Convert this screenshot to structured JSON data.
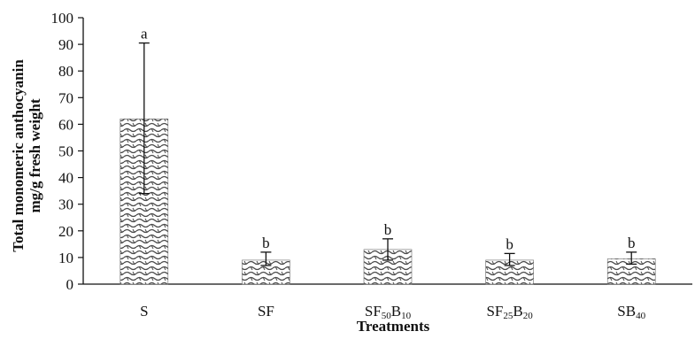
{
  "chart_data": {
    "type": "bar",
    "title": "",
    "xlabel": "Treatments",
    "ylabel": [
      "Total monomeric  anthocyanin",
      "mg/g fresh weight"
    ],
    "ylim": [
      0,
      100
    ],
    "yticks": [
      0,
      10,
      20,
      30,
      40,
      50,
      60,
      70,
      80,
      90,
      100
    ],
    "grid": false,
    "legend": "none",
    "categories": [
      {
        "label": "S",
        "parts": [
          {
            "t": "S",
            "sub": false
          }
        ]
      },
      {
        "label": "SF",
        "parts": [
          {
            "t": "SF",
            "sub": false
          }
        ]
      },
      {
        "label": "SF50B10",
        "parts": [
          {
            "t": "SF",
            "sub": false
          },
          {
            "t": "50",
            "sub": true
          },
          {
            "t": "B",
            "sub": false
          },
          {
            "t": "10",
            "sub": true
          }
        ]
      },
      {
        "label": "SF25B20",
        "parts": [
          {
            "t": "SF",
            "sub": false
          },
          {
            "t": "25",
            "sub": true
          },
          {
            "t": "B",
            "sub": false
          },
          {
            "t": "20",
            "sub": true
          }
        ]
      },
      {
        "label": "SB40",
        "parts": [
          {
            "t": "SB",
            "sub": false
          },
          {
            "t": "40",
            "sub": true
          }
        ]
      }
    ],
    "values": [
      62,
      9,
      13,
      9,
      9.5
    ],
    "error_high": [
      90.5,
      12,
      17,
      11.5,
      12
    ],
    "error_low": [
      34,
      7,
      9,
      7,
      7.5
    ],
    "letters": [
      "a",
      "b",
      "b",
      "b",
      "b"
    ],
    "bar_pattern": "wavy hatch",
    "colors": {
      "bar_fill": "#ffffff",
      "pattern": "#4a4a4a",
      "axis": "#111111",
      "error_bar": "#111111"
    }
  }
}
